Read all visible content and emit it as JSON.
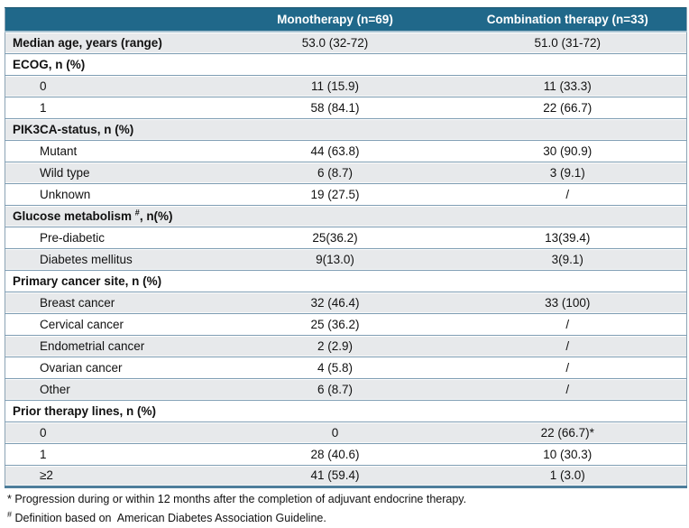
{
  "table": {
    "columns": [
      "",
      "Monotherapy (n=69)",
      "Combination therapy (n=33)"
    ],
    "rows": [
      {
        "label": "Median age, years (range)",
        "bold": true,
        "monotherapy": "53.0 (32-72)",
        "combination": "51.0 (31-72)"
      },
      {
        "label": "ECOG, n (%)",
        "section": true,
        "monotherapy": "",
        "combination": ""
      },
      {
        "label": "0",
        "monotherapy": "11 (15.9)",
        "combination": "11 (33.3)"
      },
      {
        "label": "1",
        "monotherapy": "58 (84.1)",
        "combination": "22 (66.7)"
      },
      {
        "label": "PIK3CA-status, n (%)",
        "section": true,
        "monotherapy": "",
        "combination": ""
      },
      {
        "label": "Mutant",
        "monotherapy": "44 (63.8)",
        "combination": "30 (90.9)"
      },
      {
        "label": "Wild type",
        "monotherapy": "6 (8.7)",
        "combination": "3 (9.1)"
      },
      {
        "label": "Unknown",
        "monotherapy": "19 (27.5)",
        "combination": "/"
      },
      {
        "label": "Glucose metabolism ",
        "label_sup": "#",
        "label_post": ", n(%)",
        "section": true,
        "monotherapy": "",
        "combination": ""
      },
      {
        "label": "Pre-diabetic",
        "monotherapy": "25(36.2)",
        "combination": "13(39.4)"
      },
      {
        "label": "Diabetes mellitus",
        "monotherapy": "9(13.0)",
        "combination": "3(9.1)"
      },
      {
        "label": "Primary cancer site, n (%)",
        "section": true,
        "monotherapy": "",
        "combination": ""
      },
      {
        "label": "Breast cancer",
        "monotherapy": "32 (46.4)",
        "combination": "33 (100)"
      },
      {
        "label": "Cervical cancer",
        "monotherapy": "25 (36.2)",
        "combination": "/"
      },
      {
        "label": "Endometrial cancer",
        "monotherapy": "2 (2.9)",
        "combination": "/"
      },
      {
        "label": "Ovarian cancer",
        "monotherapy": "4 (5.8)",
        "combination": "/"
      },
      {
        "label": "Other",
        "monotherapy": "6 (8.7)",
        "combination": "/"
      },
      {
        "label": "Prior therapy lines, n (%)",
        "section": true,
        "monotherapy": "",
        "combination": ""
      },
      {
        "label": "0",
        "monotherapy": "0",
        "combination": "22 (66.7)*"
      },
      {
        "label": "1",
        "monotherapy": "28 (40.6)",
        "combination": "10 (30.3)"
      },
      {
        "label": "≥2",
        "monotherapy": "41 (59.4)",
        "combination": "1 (3.0)"
      }
    ]
  },
  "footnotes": [
    {
      "marker": "*",
      "superscript": false,
      "text": " Progression during or within 12 months after the completion of adjuvant endocrine therapy."
    },
    {
      "marker": "#",
      "superscript": true,
      "text": " Definition based on  American Diabetes Association Guideline."
    }
  ],
  "colors": {
    "header_bg": "#20688A",
    "shaded_row_bg": "#E7E9EB",
    "row_border": "#7E9DB3",
    "bottom_border": "#4E7E9B"
  }
}
